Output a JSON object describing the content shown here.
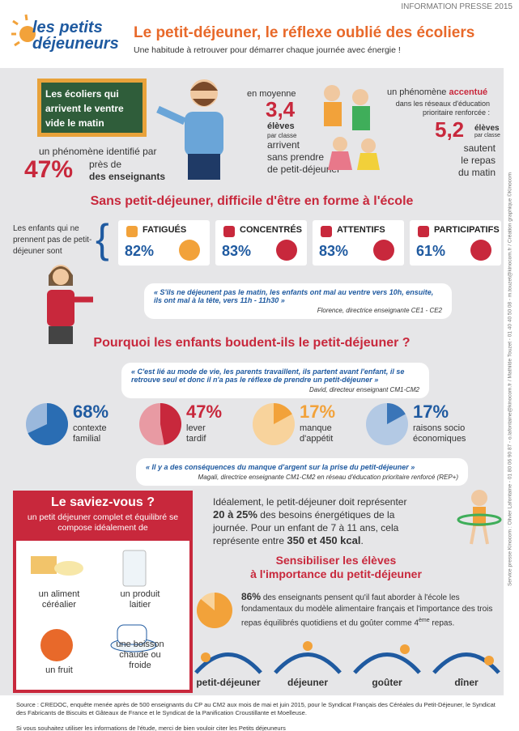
{
  "header": {
    "press": "INFORMATION PRESSE 2015",
    "logo": [
      "les petits",
      "déjeuneurs"
    ],
    "title": "Le petit-déjeuner, le réflexe oublié des écoliers",
    "subtitle": "Une habitude à retrouver pour démarrer chaque journée avec énergie !"
  },
  "intro": {
    "board": "Les écoliers qui arrivent le ventre vide le matin",
    "teachers": {
      "pre": "un phénomène identifié par",
      "pct": "47%",
      "near": "près de",
      "who": "des enseignants"
    },
    "average": {
      "pre": "en moyenne",
      "num": "3,4",
      "unit": "élèves",
      "sub": "par classe",
      "lines": [
        "arrivent",
        "sans prendre",
        "de petit-déjeuner"
      ]
    },
    "priority": {
      "pre": "un phénomène",
      "bold": "accentué",
      "line2": "dans les réseaux d'éducation",
      "line3": "prioritaire renforcée :",
      "num": "5,2",
      "unit": "élèves",
      "sub": "par classe",
      "lines": [
        "sautent",
        "le repas",
        "du matin"
      ]
    }
  },
  "effects": {
    "heading": "Sans petit-déjeuner, difficile d'être en forme à l'école",
    "intro": "Les enfants qui ne prennent pas de petit-déjeuner sont",
    "cards": [
      {
        "label": "FATIGUÉS",
        "pct": "82%"
      },
      {
        "label": "CONCENTRÉS",
        "pct": "83%"
      },
      {
        "label": "ATTENTIFS",
        "pct": "83%"
      },
      {
        "label": "PARTICIPATIFS",
        "pct": "61%"
      }
    ],
    "quote": "« S'ils ne déjeunent pas le matin, les enfants ont mal au ventre vers 10h, ensuite, ils ont mal à la tête, vers 11h - 11h30 »",
    "author": "Florence, directrice enseignante CE1 - CE2"
  },
  "reasons": {
    "heading": "Pourquoi les enfants boudent-ils le petit-déjeuner ?",
    "quote1": "« C'est lié au mode de vie, les parents travaillent, ils partent avant l'enfant, il se retrouve seul et donc il n'a pas le réflexe de prendre un petit-déjeuner »",
    "author1": "David, directeur enseignant CM1-CM2",
    "pies": [
      {
        "value": 68,
        "label": "68%",
        "text": [
          "contexte",
          "familial"
        ]
      },
      {
        "value": 47,
        "label": "47%",
        "text": [
          "lever",
          "tardif"
        ]
      },
      {
        "value": 17,
        "label": "17%",
        "text": [
          "manque",
          "d'appétit"
        ]
      },
      {
        "value": 17,
        "label": "17%",
        "text": [
          "raisons socio",
          "économiques"
        ]
      }
    ],
    "quote2": "« Il y a des conséquences du manque d'argent sur la prise du petit-déjeuner »",
    "author2": "Magali, directrice enseignante CM1-CM2 en réseau d'éducation prioritaire renforcé (REP+)"
  },
  "know": {
    "title": "Le saviez-vous ?",
    "intro": "un petit déjeuner complet et équilibré se compose idéalement de",
    "items": [
      [
        "un aliment",
        "céréalier"
      ],
      [
        "un produit",
        "laitier"
      ],
      [
        "un fruit"
      ],
      [
        "une boisson",
        "chaude ou",
        "froide"
      ]
    ]
  },
  "energy": {
    "p1": "Idéalement, le petit-déjeuner doit représenter",
    "b1": "20 à 25%",
    "p2": "des besoins énergétiques de la journée. Pour un enfant de 7 à 11 ans, cela représente entre",
    "b2": "350 et 450 kcal",
    "p3": "."
  },
  "aware": {
    "heading": [
      "Sensibiliser les élèves",
      "à l'importance du petit-déjeuner"
    ],
    "value": 86,
    "label": "86%",
    "text": "des enseignants pensent qu'il faut aborder à l'école les fondamentaux du modèle alimentaire français et l'importance des trois repas équilibrés quotidiens et du goûter comme 4",
    "sup": "ème",
    "end": " repas.",
    "meals": [
      "petit-déjeuner",
      "déjeuner",
      "goûter",
      "dîner"
    ]
  },
  "footer": {
    "source": "Source : CREDOC, enquête menée après de 500 enseignants du CP au CM2 aux mois de mai et juin 2015, pour le Syndicat Français des Céréales du Petit-Déjeuner, le Syndicat des Fabricants de Biscuits et Gâteaux de France et le Syndicat de la Panification Croustillante et Moelleuse.",
    "cite": "Si vous souhaitez utiliser les informations de l'étude, merci de bien vouloir citer les Petits déjeuneurs",
    "credit": "Service presse Kinocom : Olivier Lafontaine - 01 80 06 90 87 - o.lafontaine@kinocom.fr / Mathilde Touzet - 01 40 40 50 08 - m.touzet@kinocom.fr / Création graphique ©Kinocom"
  }
}
